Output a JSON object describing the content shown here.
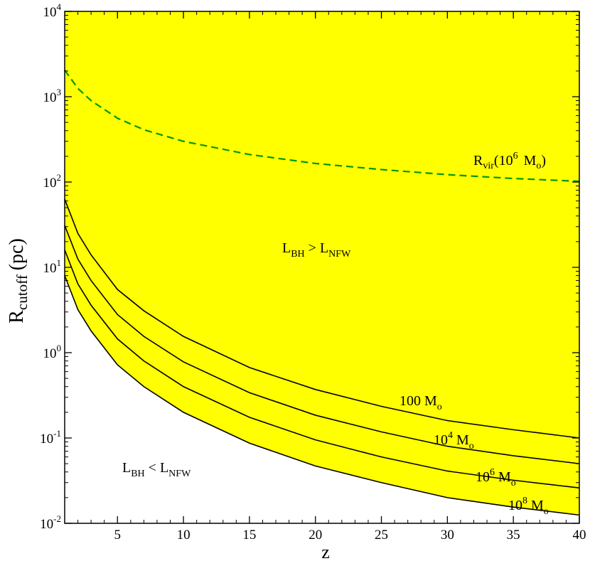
{
  "chart_data": {
    "type": "line",
    "xlabel": "z",
    "ylabel": {
      "main": "R",
      "sub": "cutoff",
      "unit": "(pc)"
    },
    "xlim": [
      1,
      40
    ],
    "ylim": [
      0.01,
      10000
    ],
    "yscale": "log",
    "grid": false,
    "legend": "none",
    "x_ticks": [
      "5",
      "10",
      "15",
      "20",
      "25",
      "30",
      "35",
      "40"
    ],
    "x_tick_values": [
      5,
      10,
      15,
      20,
      25,
      30,
      35,
      40
    ],
    "y_ticks": [
      {
        "value": 0.01,
        "base": "10",
        "exp": "-2"
      },
      {
        "value": 0.1,
        "base": "10",
        "exp": "-1"
      },
      {
        "value": 1,
        "base": "10",
        "exp": "0"
      },
      {
        "value": 10,
        "base": "10",
        "exp": "1"
      },
      {
        "value": 100,
        "base": "10",
        "exp": "2"
      },
      {
        "value": 1000,
        "base": "10",
        "exp": "3"
      },
      {
        "value": 10000,
        "base": "10",
        "exp": "4"
      }
    ],
    "fill_color": "#ffff00",
    "series": [
      {
        "style": "solid",
        "color": "#000000",
        "x": [
          1,
          2,
          3,
          5,
          7,
          10,
          15,
          20,
          25,
          30,
          35,
          40
        ],
        "y": [
          63,
          25,
          14,
          5.5,
          3.1,
          1.55,
          0.67,
          0.37,
          0.235,
          0.16,
          0.125,
          0.1
        ]
      },
      {
        "style": "solid",
        "color": "#000000",
        "x": [
          1,
          2,
          3,
          5,
          7,
          10,
          15,
          20,
          25,
          30,
          35,
          40
        ],
        "y": [
          31,
          12.5,
          7,
          2.8,
          1.55,
          0.78,
          0.34,
          0.185,
          0.118,
          0.08,
          0.062,
          0.05
        ]
      },
      {
        "style": "solid",
        "color": "#000000",
        "x": [
          1,
          2,
          3,
          5,
          7,
          10,
          15,
          20,
          25,
          30,
          35,
          40
        ],
        "y": [
          16,
          6.4,
          3.6,
          1.45,
          0.8,
          0.4,
          0.175,
          0.095,
          0.06,
          0.041,
          0.032,
          0.026
        ]
      },
      {
        "style": "solid",
        "color": "#000000",
        "x": [
          1,
          2,
          3,
          5,
          7,
          10,
          15,
          20,
          25,
          30,
          35,
          40
        ],
        "y": [
          8,
          3.2,
          1.8,
          0.72,
          0.4,
          0.2,
          0.087,
          0.047,
          0.03,
          0.02,
          0.0155,
          0.0125
        ]
      },
      {
        "style": "dashed",
        "color": "#009900",
        "x": [
          1,
          2,
          3,
          5,
          7,
          10,
          15,
          20,
          25,
          30,
          35,
          40
        ],
        "y": [
          2050,
          1250,
          900,
          560,
          410,
          300,
          210,
          165,
          140,
          122,
          110,
          102
        ]
      }
    ],
    "annotations": {
      "rvir": {
        "base": "R",
        "sub": "vir",
        "mid": "(10",
        "sup": "6",
        "space": " M",
        "sub2": "o",
        "end": ")"
      },
      "m100": {
        "base": "100 M",
        "sub": "o"
      },
      "m1e4": {
        "base": "10",
        "sup": "4",
        "mid": " M",
        "sub": "o"
      },
      "m1e6": {
        "base": "10",
        "sup": "6",
        "mid": " M",
        "sub": "o"
      },
      "m1e8": {
        "base": "10",
        "sup": "8",
        "mid": " M",
        "sub": "o"
      },
      "upper_region": {
        "l1": "L",
        "sub1": "BH",
        "op": " > L",
        "sub2": "NFW"
      },
      "lower_region": {
        "l1": "L",
        "sub1": "BH",
        "op": " < L",
        "sub2": "NFW"
      }
    }
  }
}
